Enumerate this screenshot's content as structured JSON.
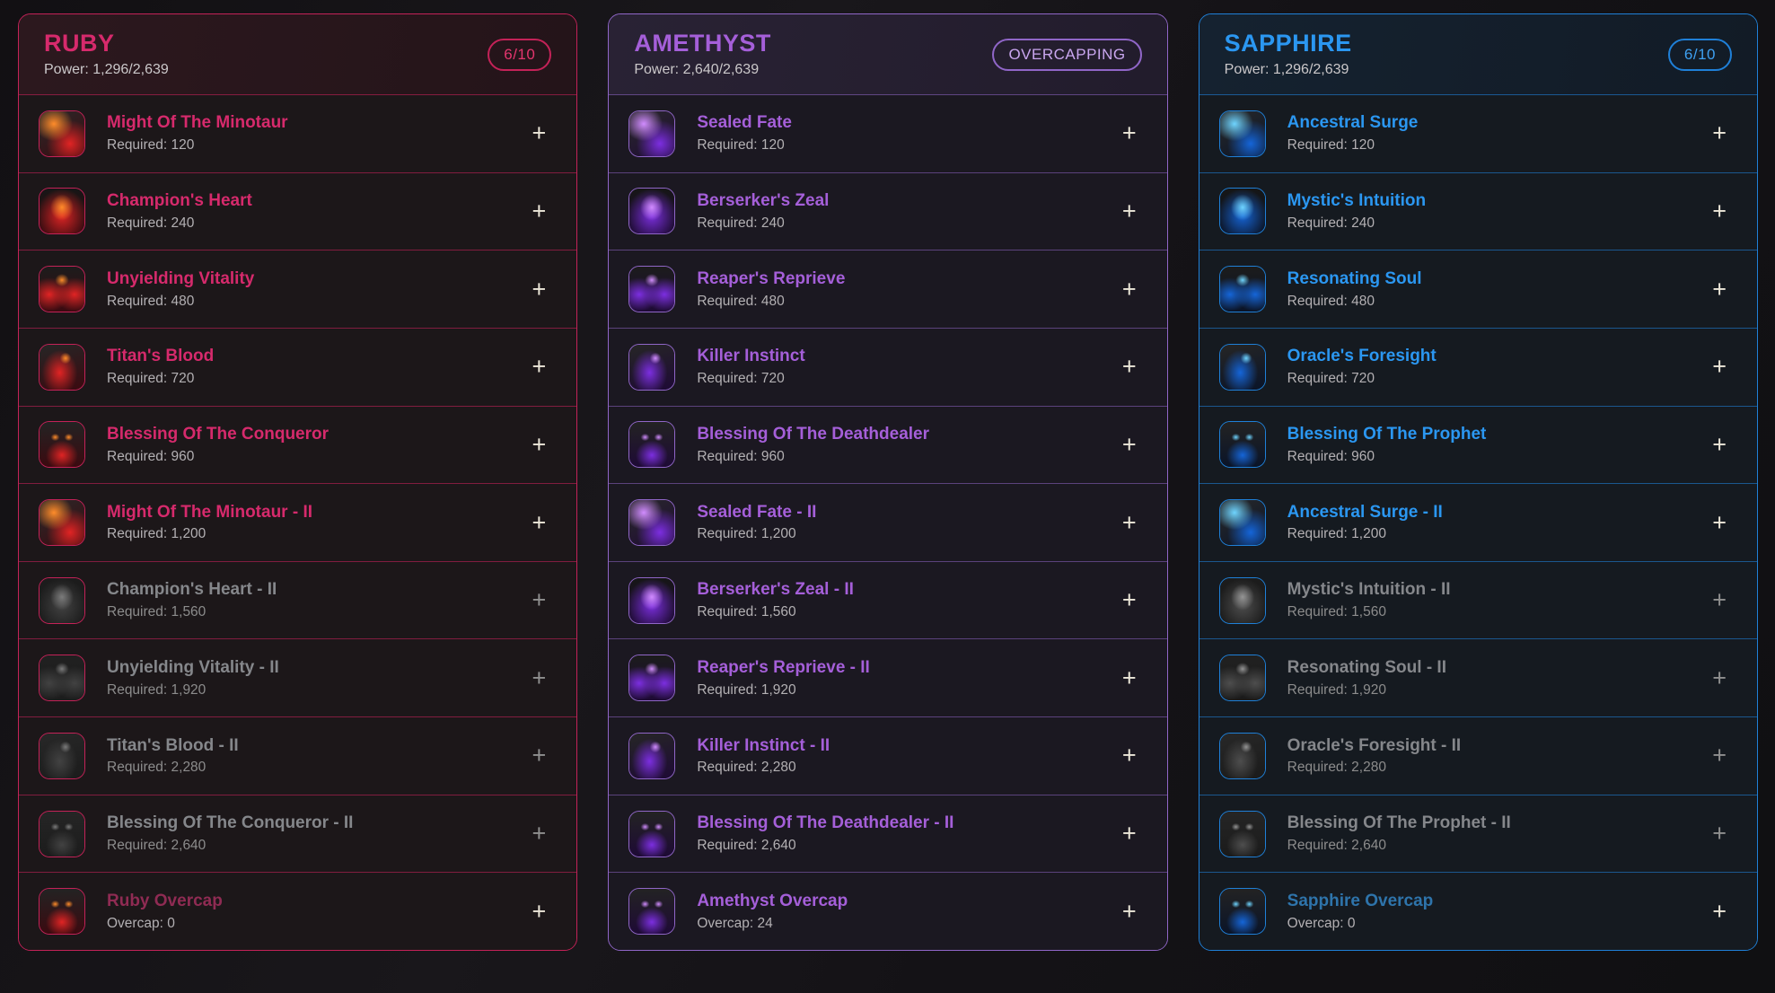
{
  "controls": {
    "add_label": "+"
  },
  "panels": [
    {
      "id": "ruby",
      "title": "RUBY",
      "power_label": "Power: 1,296/2,639",
      "badge": "6/10",
      "colors": {
        "accent": "#c42258",
        "title": "#d62a6c",
        "badge_text": "#e4356e",
        "divider": "rgba(196,34,88,0.6)",
        "header_bg1": "#2c181e",
        "header_bg2": "#241419",
        "rows_bg": "#1c1719",
        "overcap_title": "#8f2b53",
        "icon": [
          "#ff8c2a",
          "#e02424",
          "#3b0a10"
        ]
      },
      "items": [
        {
          "name": "Might Of The Minotaur",
          "sub": "Required: 120",
          "state": "active",
          "icon": "flaming-minotaur"
        },
        {
          "name": "Champion's Heart",
          "sub": "Required: 240",
          "state": "active",
          "icon": "flame-heart"
        },
        {
          "name": "Unyielding Vitality",
          "sub": "Required: 480",
          "state": "active",
          "icon": "burning-figure"
        },
        {
          "name": "Titan's Blood",
          "sub": "Required: 720",
          "state": "active",
          "icon": "blood-tendrils"
        },
        {
          "name": "Blessing Of The Conqueror",
          "sub": "Required: 960",
          "state": "active",
          "icon": "conqueror-demon-face"
        },
        {
          "name": "Might Of The Minotaur - II",
          "sub": "Required: 1,200",
          "state": "active",
          "icon": "flaming-minotaur"
        },
        {
          "name": "Champion's Heart - II",
          "sub": "Required: 1,560",
          "state": "locked",
          "icon": "flame-heart"
        },
        {
          "name": "Unyielding Vitality - II",
          "sub": "Required: 1,920",
          "state": "locked",
          "icon": "burning-figure"
        },
        {
          "name": "Titan's Blood - II",
          "sub": "Required: 2,280",
          "state": "locked",
          "icon": "blood-tendrils"
        },
        {
          "name": "Blessing Of The Conqueror - II",
          "sub": "Required: 2,640",
          "state": "locked",
          "icon": "conqueror-demon-face"
        },
        {
          "name": "Ruby Overcap",
          "sub": "Overcap: 0",
          "state": "overcap",
          "icon": "ruby-overcap-demon"
        }
      ]
    },
    {
      "id": "amethyst",
      "title": "AMETHYST",
      "power_label": "Power: 2,640/2,639",
      "badge": "OVERCAPPING",
      "colors": {
        "accent": "#9066c8",
        "title": "#a55fd9",
        "badge_text": "#c9a6ef",
        "divider": "rgba(144,102,200,0.55)",
        "header_bg1": "#292234",
        "header_bg2": "#221c2c",
        "rows_bg": "#1b1821",
        "overcap_title": "#a55fd9",
        "icon": [
          "#d18cff",
          "#7c2ee0",
          "#1e0a35"
        ]
      },
      "items": [
        {
          "name": "Sealed Fate",
          "sub": "Required: 120",
          "state": "active",
          "icon": "sealed-fate-shard"
        },
        {
          "name": "Berserker's Zeal",
          "sub": "Required: 240",
          "state": "active",
          "icon": "berserker-wraith"
        },
        {
          "name": "Reaper's Reprieve",
          "sub": "Required: 480",
          "state": "active",
          "icon": "reaper-spirits"
        },
        {
          "name": "Killer Instinct",
          "sub": "Required: 720",
          "state": "active",
          "icon": "killer-claw"
        },
        {
          "name": "Blessing Of The Deathdealer",
          "sub": "Required: 960",
          "state": "active",
          "icon": "deathdealer-scream"
        },
        {
          "name": "Sealed Fate - II",
          "sub": "Required: 1,200",
          "state": "active",
          "icon": "sealed-fate-shard"
        },
        {
          "name": "Berserker's Zeal - II",
          "sub": "Required: 1,560",
          "state": "active",
          "icon": "berserker-wraith"
        },
        {
          "name": "Reaper's Reprieve - II",
          "sub": "Required: 1,920",
          "state": "active",
          "icon": "reaper-spirits"
        },
        {
          "name": "Killer Instinct - II",
          "sub": "Required: 2,280",
          "state": "active",
          "icon": "killer-claw"
        },
        {
          "name": "Blessing Of The Deathdealer - II",
          "sub": "Required: 2,640",
          "state": "active",
          "icon": "deathdealer-scream"
        },
        {
          "name": "Amethyst Overcap",
          "sub": "Overcap: 24",
          "state": "overcap",
          "icon": "amethyst-overcap-scream"
        }
      ]
    },
    {
      "id": "sapphire",
      "title": "SAPPHIRE",
      "power_label": "Power: 1,296/2,639",
      "badge": "6/10",
      "colors": {
        "accent": "#1f80d8",
        "title": "#2b97f1",
        "badge_text": "#3ea1f2",
        "divider": "rgba(31,128,216,0.6)",
        "header_bg1": "#152230",
        "header_bg2": "#121b26",
        "rows_bg": "#151a20",
        "overcap_title": "#2e74ab",
        "icon": [
          "#6fd4ff",
          "#1565d8",
          "#0a1428"
        ]
      },
      "items": [
        {
          "name": "Ancestral Surge",
          "sub": "Required: 120",
          "state": "active",
          "icon": "ancestral-golem"
        },
        {
          "name": "Mystic's Intuition",
          "sub": "Required: 240",
          "state": "active",
          "icon": "mystic-wave"
        },
        {
          "name": "Resonating Soul",
          "sub": "Required: 480",
          "state": "active",
          "icon": "resonating-orb"
        },
        {
          "name": "Oracle's Foresight",
          "sub": "Required: 720",
          "state": "active",
          "icon": "oracle-spirit"
        },
        {
          "name": "Blessing Of The Prophet",
          "sub": "Required: 960",
          "state": "active",
          "icon": "prophet-avatar"
        },
        {
          "name": "Ancestral Surge - II",
          "sub": "Required: 1,200",
          "state": "active",
          "icon": "ancestral-golem"
        },
        {
          "name": "Mystic's Intuition - II",
          "sub": "Required: 1,560",
          "state": "locked",
          "icon": "mystic-wave"
        },
        {
          "name": "Resonating Soul - II",
          "sub": "Required: 1,920",
          "state": "locked",
          "icon": "resonating-orb"
        },
        {
          "name": "Oracle's Foresight - II",
          "sub": "Required: 2,280",
          "state": "locked",
          "icon": "oracle-spirit"
        },
        {
          "name": "Blessing Of The Prophet - II",
          "sub": "Required: 2,640",
          "state": "locked",
          "icon": "prophet-avatar"
        },
        {
          "name": "Sapphire Overcap",
          "sub": "Overcap: 0",
          "state": "overcap",
          "icon": "sapphire-overcap-avatar"
        }
      ]
    }
  ]
}
